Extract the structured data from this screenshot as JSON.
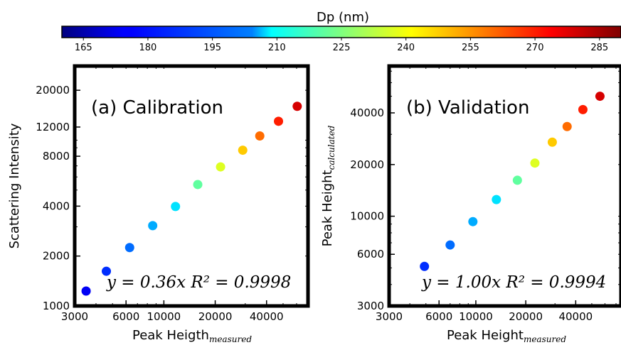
{
  "colorbar": {
    "label": "Dp (nm)",
    "range": [
      160,
      290
    ],
    "ticks": [
      "165",
      "180",
      "195",
      "210",
      "225",
      "240",
      "255",
      "270",
      "285"
    ],
    "colormap": "jet"
  },
  "chart_data": [
    {
      "type": "scatter",
      "title": "(a) Calibration",
      "xlabel": "Peak Heigth",
      "xlabel_sub": "measured",
      "ylabel": "Scattering Intensity",
      "xscale": "log",
      "yscale": "log",
      "xlim": [
        3000,
        70000
      ],
      "ylim": [
        1000,
        28000
      ],
      "xticks": [
        "3000",
        "6000",
        "10000",
        "20000",
        "40000"
      ],
      "yticks": [
        "1000",
        "2000",
        "4000",
        "8000",
        "12000",
        "20000"
      ],
      "annotation": "y = 0.36x  R² = 0.9998",
      "points": [
        {
          "x": 3500,
          "y": 1230,
          "dp": 175
        },
        {
          "x": 4600,
          "y": 1620,
          "dp": 182
        },
        {
          "x": 6300,
          "y": 2250,
          "dp": 190
        },
        {
          "x": 8600,
          "y": 3050,
          "dp": 198
        },
        {
          "x": 11700,
          "y": 3980,
          "dp": 205
        },
        {
          "x": 15800,
          "y": 5400,
          "dp": 221
        },
        {
          "x": 21500,
          "y": 6900,
          "dp": 237
        },
        {
          "x": 29000,
          "y": 8700,
          "dp": 248
        },
        {
          "x": 36500,
          "y": 10600,
          "dp": 260
        },
        {
          "x": 47000,
          "y": 13000,
          "dp": 270
        },
        {
          "x": 60500,
          "y": 16000,
          "dp": 279
        }
      ]
    },
    {
      "type": "scatter",
      "title": "(b) Validation",
      "xlabel": "Peak Height",
      "xlabel_sub": "measured",
      "ylabel": "Peak Height",
      "ylabel_sub": "calculated",
      "xscale": "log",
      "yscale": "log",
      "xlim": [
        3000,
        75000
      ],
      "ylim": [
        3000,
        75000
      ],
      "xticks": [
        "3000",
        "6000",
        "10000",
        "20000",
        "40000"
      ],
      "yticks": [
        "3000",
        "6000",
        "10000",
        "20000",
        "40000"
      ],
      "annotation": "y = 1.00x  R² = 0.9994",
      "points": [
        {
          "x": 4900,
          "y": 5100,
          "dp": 182
        },
        {
          "x": 7000,
          "y": 6800,
          "dp": 190
        },
        {
          "x": 9600,
          "y": 9300,
          "dp": 198
        },
        {
          "x": 13300,
          "y": 12500,
          "dp": 205
        },
        {
          "x": 17800,
          "y": 16200,
          "dp": 221
        },
        {
          "x": 22700,
          "y": 20400,
          "dp": 237
        },
        {
          "x": 28900,
          "y": 27000,
          "dp": 248
        },
        {
          "x": 35500,
          "y": 33300,
          "dp": 260
        },
        {
          "x": 44200,
          "y": 41800,
          "dp": 270
        },
        {
          "x": 56000,
          "y": 50000,
          "dp": 279
        }
      ]
    }
  ]
}
